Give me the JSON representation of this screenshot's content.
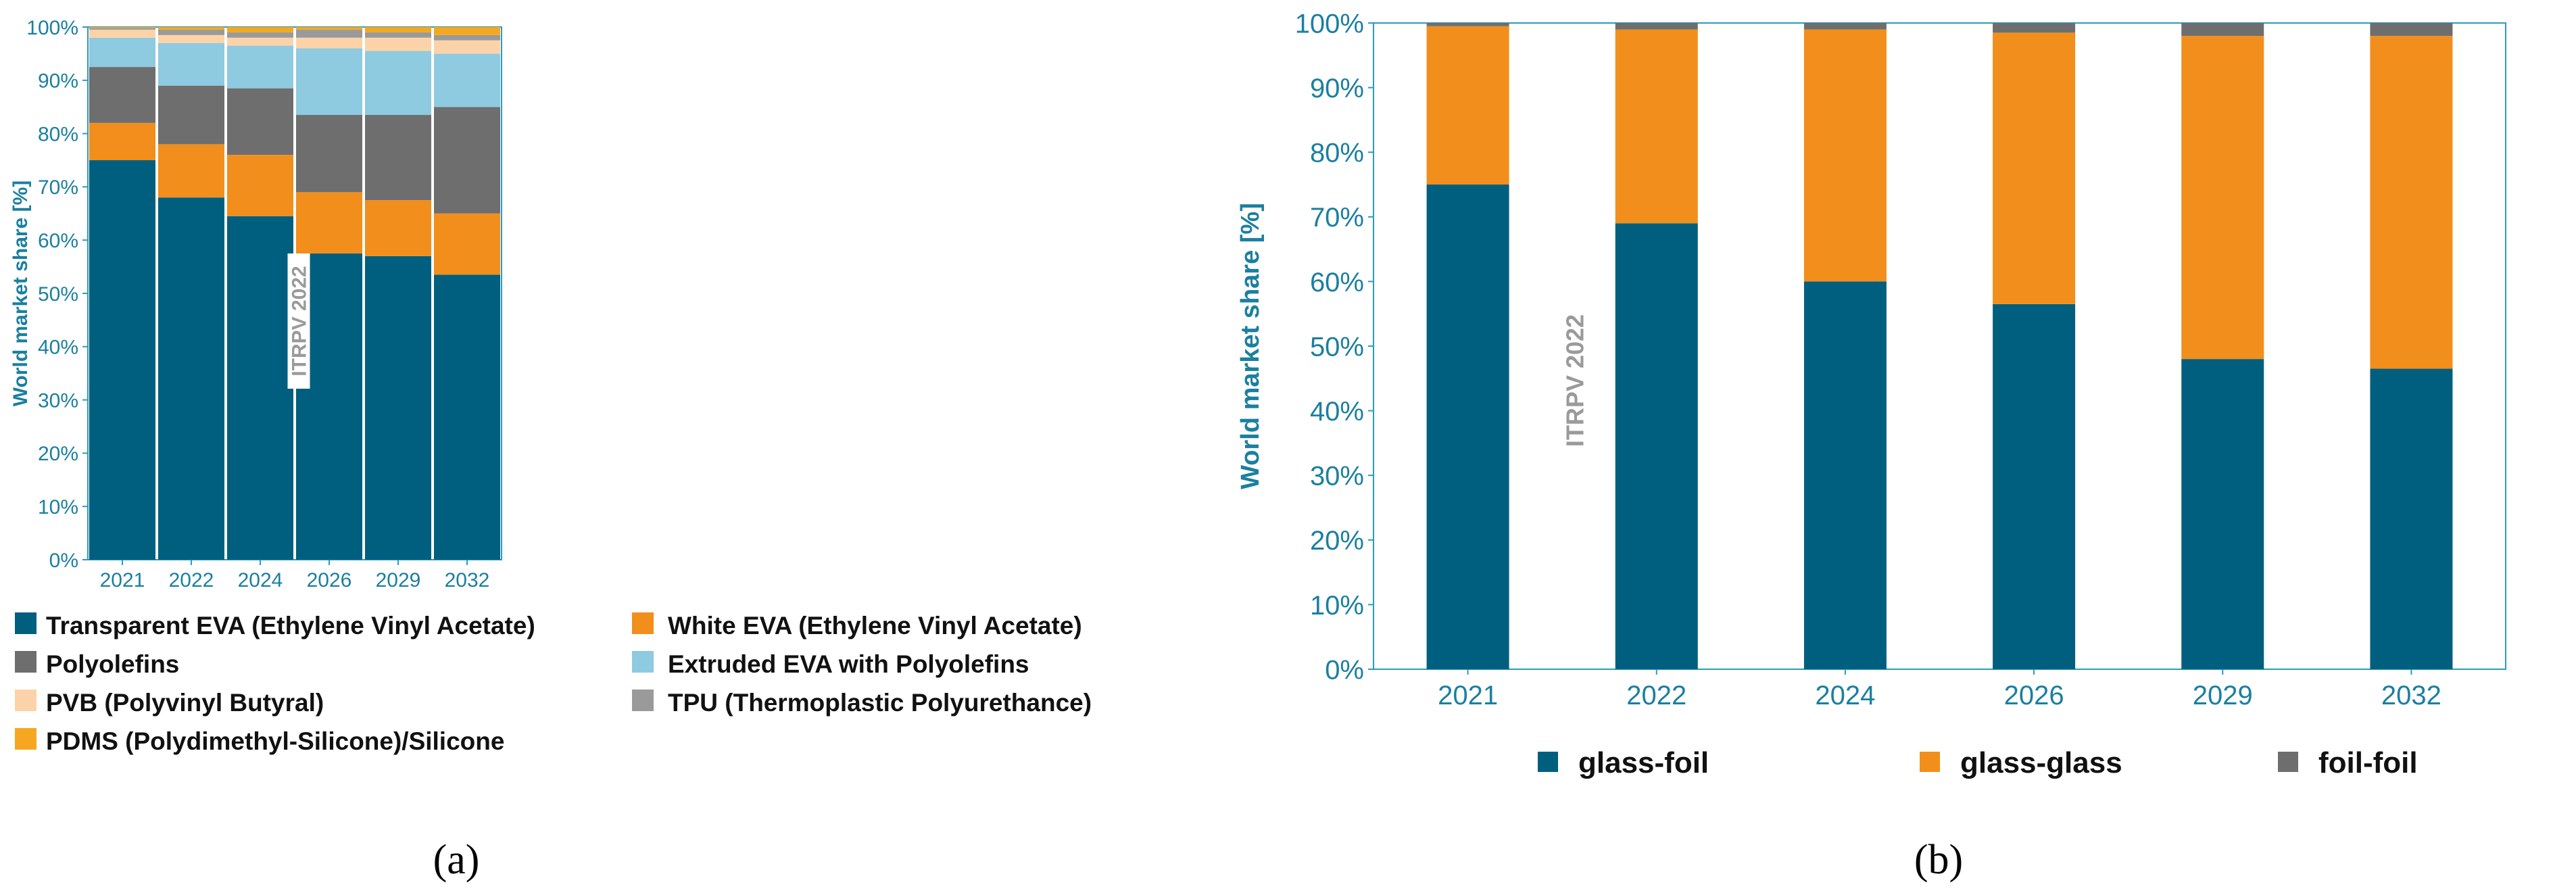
{
  "chart_data": [
    {
      "type": "bar",
      "stacked": true,
      "panel_label": "a",
      "title": "",
      "xlabel": "",
      "ylabel": "World market share [%]",
      "ylim": [
        0,
        100
      ],
      "yticks": [
        "0%",
        "10%",
        "20%",
        "30%",
        "40%",
        "50%",
        "60%",
        "70%",
        "80%",
        "90%",
        "100%"
      ],
      "watermark": "ITRPV 2022",
      "categories": [
        "2021",
        "2022",
        "2024",
        "2026",
        "2029",
        "2032"
      ],
      "series": [
        {
          "name": "Transparent EVA (Ethylene Vinyl Acetate)",
          "color": "#005f7f",
          "values": [
            75,
            68,
            64.5,
            57.5,
            57,
            53.5
          ]
        },
        {
          "name": "White EVA (Ethylene Vinyl Acetate)",
          "color": "#f28e1c",
          "values": [
            7,
            10,
            11.5,
            11.5,
            10.5,
            11.5
          ]
        },
        {
          "name": "Polyolefins",
          "color": "#6e6e6e",
          "values": [
            10.5,
            11,
            12.5,
            14.5,
            16,
            20
          ]
        },
        {
          "name": "Extruded EVA with Polyolefins",
          "color": "#8ecae0",
          "values": [
            5.5,
            8,
            8,
            12.5,
            12,
            10
          ]
        },
        {
          "name": "PVB (Polyvinyl Butyral)",
          "color": "#fcd3a8",
          "values": [
            1.5,
            1.5,
            1.5,
            2,
            2.5,
            2.5
          ]
        },
        {
          "name": "TPU (Thermoplastic Polyurethance)",
          "color": "#9a9a9a",
          "values": [
            0.3,
            1,
            1,
            1.5,
            1,
            1
          ]
        },
        {
          "name": "PDMS (Polydimethyl-Silicone)/Silicone",
          "color": "#f5a81f",
          "values": [
            0.2,
            0.5,
            1,
            0.5,
            1,
            1.5
          ]
        }
      ],
      "legend": {
        "left": [
          "Transparent EVA (Ethylene Vinyl Acetate)",
          "Polyolefins",
          "PVB (Polyvinyl Butyral)",
          "PDMS (Polydimethyl-Silicone)/Silicone"
        ],
        "right": [
          "White EVA (Ethylene Vinyl Acetate)",
          "Extruded EVA with Polyolefins",
          "TPU (Thermoplastic Polyurethance)"
        ]
      }
    },
    {
      "type": "bar",
      "stacked": true,
      "panel_label": "b",
      "title": "",
      "xlabel": "",
      "ylabel": "World market share [%]",
      "ylim": [
        0,
        100
      ],
      "yticks": [
        "0%",
        "10%",
        "20%",
        "30%",
        "40%",
        "50%",
        "60%",
        "70%",
        "80%",
        "90%",
        "100%"
      ],
      "watermark": "ITRPV 2022",
      "categories": [
        "2021",
        "2022",
        "2024",
        "2026",
        "2029",
        "2032"
      ],
      "series": [
        {
          "name": "glass-foil",
          "color": "#005f7f",
          "values": [
            75,
            69,
            60,
            56.5,
            48,
            46.5
          ]
        },
        {
          "name": "glass-glass",
          "color": "#f28e1c",
          "values": [
            24.5,
            30,
            39,
            42,
            50,
            51.5
          ]
        },
        {
          "name": "foil-foil",
          "color": "#6e6e6e",
          "values": [
            0.5,
            1,
            1,
            1.5,
            2,
            2
          ]
        }
      ]
    }
  ],
  "captions": {
    "a": "(a)",
    "b": "(b)"
  }
}
